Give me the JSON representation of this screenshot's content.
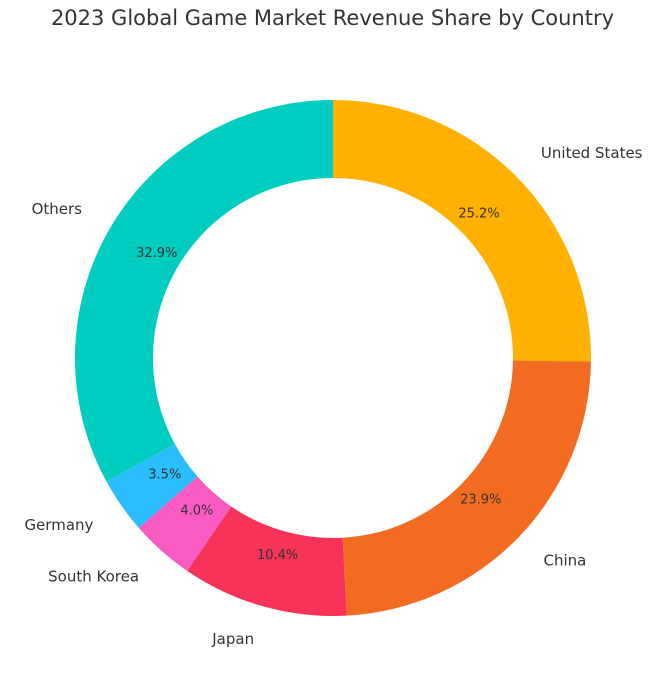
{
  "chart_data": {
    "type": "pie",
    "variant": "donut",
    "title": "2023 Global Game Market Revenue Share by Country",
    "categories": [
      "United States",
      "China",
      "Japan",
      "South Korea",
      "Germany",
      "Others"
    ],
    "values": [
      25.2,
      23.9,
      10.4,
      4.0,
      3.5,
      32.9
    ],
    "value_labels": [
      "25.2%",
      "23.9%",
      "10.4%",
      "4.0%",
      "3.5%",
      "32.9%"
    ],
    "colors": [
      "#FFB000",
      "#F26B21",
      "#F7335A",
      "#F95BC2",
      "#2BBEFF",
      "#00CCBF"
    ],
    "start_angle": "top",
    "direction": "clockwise",
    "legend": "none"
  }
}
